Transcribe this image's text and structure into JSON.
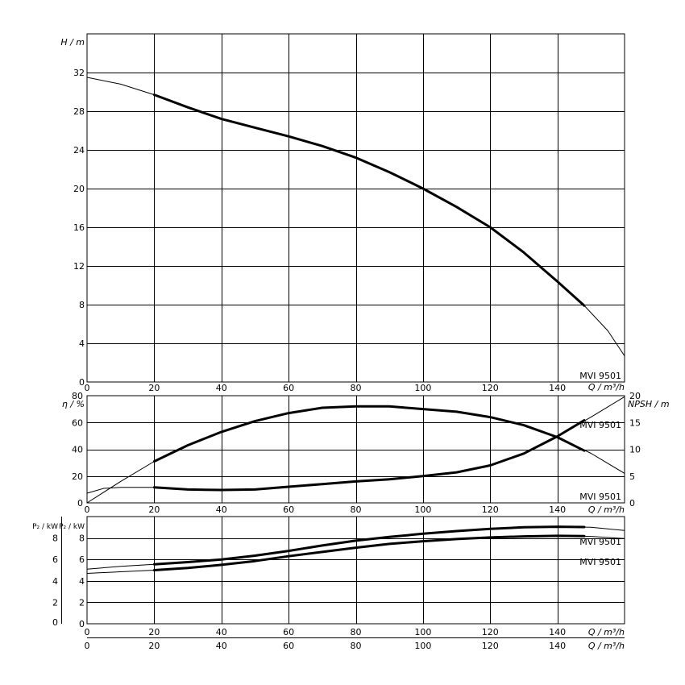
{
  "chart_data": [
    {
      "type": "line",
      "panel": "head",
      "ylabel": "H / m",
      "xlabel": "Q / m³/h",
      "xlim": [
        0,
        160
      ],
      "ylim": [
        0,
        36
      ],
      "x_ticks": [
        "0",
        "20",
        "40",
        "60",
        "80",
        "100",
        "120",
        "140"
      ],
      "y_ticks": [
        "0",
        "4",
        "8",
        "12",
        "16",
        "20",
        "24",
        "28",
        "32"
      ],
      "model_label": "MVI 9501",
      "series": [
        {
          "role": "extended",
          "x": [
            0,
            10,
            20,
            30,
            40,
            50,
            60,
            70,
            80,
            90,
            100,
            110,
            120,
            130,
            140,
            148,
            155,
            160
          ],
          "y": [
            31.5,
            30.8,
            29.7,
            28.4,
            27.2,
            26.3,
            25.4,
            24.4,
            23.2,
            21.7,
            20.0,
            18.1,
            16.0,
            13.4,
            10.4,
            7.9,
            5.3,
            2.7
          ]
        },
        {
          "role": "operating",
          "x": [
            20,
            30,
            40,
            50,
            60,
            70,
            80,
            90,
            100,
            110,
            120,
            130,
            140,
            148
          ],
          "y": [
            29.7,
            28.4,
            27.2,
            26.3,
            25.4,
            24.4,
            23.2,
            21.7,
            20.0,
            18.1,
            16.0,
            13.4,
            10.4,
            7.9
          ]
        }
      ]
    },
    {
      "type": "line",
      "panel": "efficiency_npsh",
      "ylabel": "η / %",
      "ylabel_right": "NPSH / m",
      "xlabel": "Q / m³/h",
      "xlim": [
        0,
        160
      ],
      "ylim": [
        0,
        80
      ],
      "ylim_right": [
        0,
        20
      ],
      "x_ticks": [
        "0",
        "20",
        "40",
        "60",
        "80",
        "100",
        "120",
        "140"
      ],
      "y_ticks": [
        "0",
        "20",
        "40",
        "60",
        "80"
      ],
      "y_ticks_right": [
        "0",
        "5",
        "10",
        "15",
        "20"
      ],
      "model_label_eta": "MVI 9501",
      "model_label_npsh": "MVI 9501",
      "series": [
        {
          "role": "eta_extended",
          "x": [
            0,
            10,
            20,
            30,
            40,
            50,
            60,
            70,
            80,
            90,
            100,
            110,
            120,
            130,
            140,
            150,
            160
          ],
          "y": [
            0,
            16,
            31,
            43,
            53,
            61,
            67,
            71,
            72,
            72,
            70,
            68,
            64,
            58,
            49,
            37,
            22
          ]
        },
        {
          "role": "eta_operating",
          "x": [
            20,
            30,
            40,
            50,
            60,
            70,
            80,
            90,
            100,
            110,
            120,
            130,
            140,
            148
          ],
          "y": [
            31,
            43,
            53,
            61,
            67,
            71,
            72,
            72,
            70,
            68,
            64,
            58,
            49,
            39
          ]
        },
        {
          "role": "npsh_extended",
          "x": [
            0,
            5,
            10,
            20,
            30,
            40,
            50,
            60,
            70,
            80,
            90,
            100,
            110,
            120,
            130,
            140,
            150,
            160
          ],
          "y": [
            1.8,
            2.7,
            2.9,
            2.9,
            2.5,
            2.4,
            2.5,
            3.0,
            3.5,
            4.0,
            4.4,
            5.0,
            5.7,
            7.0,
            9.2,
            12.4,
            16.0,
            19.8
          ]
        },
        {
          "role": "npsh_operating",
          "x": [
            20,
            30,
            40,
            50,
            60,
            70,
            80,
            90,
            100,
            110,
            120,
            130,
            140,
            148
          ],
          "y": [
            2.9,
            2.5,
            2.4,
            2.5,
            3.0,
            3.5,
            4.0,
            4.4,
            5.0,
            5.7,
            7.0,
            9.2,
            12.4,
            15.4
          ]
        }
      ]
    },
    {
      "type": "line",
      "panel": "power",
      "ylabel": "P₂ / kW",
      "ylabel_outer": "P₂ / kW",
      "xlabel": "Q / m³/h",
      "xlabel_outer": "Q / m³/h",
      "xlim": [
        0,
        160
      ],
      "ylim": [
        0,
        10
      ],
      "x_ticks": [
        "0",
        "20",
        "40",
        "60",
        "80",
        "100",
        "120",
        "140"
      ],
      "x_ticks_outer": [
        "0",
        "20",
        "40",
        "60",
        "80",
        "100",
        "120",
        "140"
      ],
      "y_ticks": [
        "0",
        "2",
        "4",
        "6",
        "8"
      ],
      "y_ticks_outer": [
        "0",
        "2",
        "4",
        "6",
        "8"
      ],
      "model_label_upper": "MVI 9501",
      "model_label_lower": "MVI 9501",
      "series": [
        {
          "role": "p2_upper_extended",
          "x": [
            0,
            10,
            20,
            30,
            40,
            50,
            60,
            70,
            80,
            90,
            100,
            110,
            120,
            130,
            140,
            150,
            160
          ],
          "y": [
            5.1,
            5.35,
            5.55,
            5.75,
            6.0,
            6.35,
            6.8,
            7.3,
            7.75,
            8.1,
            8.4,
            8.65,
            8.85,
            9.0,
            9.05,
            9.0,
            8.7
          ]
        },
        {
          "role": "p2_upper_operating",
          "x": [
            20,
            30,
            40,
            50,
            60,
            70,
            80,
            90,
            100,
            110,
            120,
            130,
            140,
            148
          ],
          "y": [
            5.55,
            5.75,
            6.0,
            6.35,
            6.8,
            7.3,
            7.75,
            8.1,
            8.4,
            8.65,
            8.85,
            9.0,
            9.05,
            9.02
          ]
        },
        {
          "role": "p2_lower_extended",
          "x": [
            0,
            10,
            20,
            30,
            40,
            50,
            60,
            70,
            80,
            90,
            100,
            110,
            120,
            130,
            140,
            150,
            160
          ],
          "y": [
            4.7,
            4.85,
            5.0,
            5.2,
            5.5,
            5.85,
            6.3,
            6.7,
            7.1,
            7.45,
            7.7,
            7.9,
            8.05,
            8.15,
            8.2,
            8.15,
            7.95
          ]
        },
        {
          "role": "p2_lower_operating",
          "x": [
            20,
            30,
            40,
            50,
            60,
            70,
            80,
            90,
            100,
            110,
            120,
            130,
            140,
            148
          ],
          "y": [
            5.0,
            5.2,
            5.5,
            5.85,
            6.3,
            6.7,
            7.1,
            7.45,
            7.7,
            7.9,
            8.05,
            8.15,
            8.2,
            8.17
          ]
        }
      ]
    }
  ]
}
